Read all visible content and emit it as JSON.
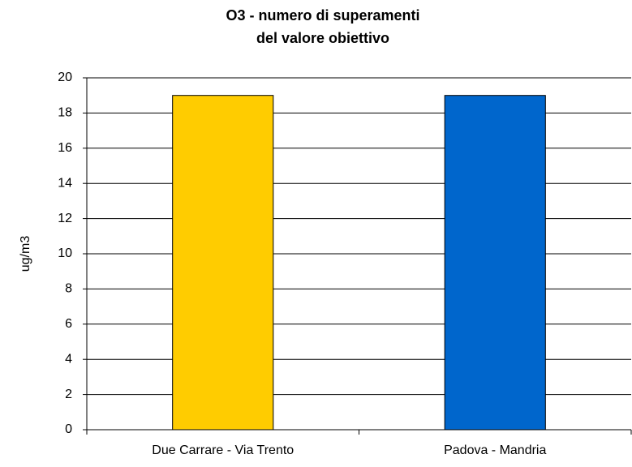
{
  "chart_data": {
    "type": "bar",
    "title": [
      "O3 -  numero di superamenti",
      "del valore obiettivo"
    ],
    "ylabel": "ug/m3",
    "categories": [
      "Due Carrare - Via Trento",
      "Padova - Mandria"
    ],
    "values": [
      19,
      19
    ],
    "colors": [
      "#ffcc00",
      "#0066cc"
    ],
    "ylim": [
      0,
      20
    ],
    "yticks": [
      0,
      2,
      4,
      6,
      8,
      10,
      12,
      14,
      16,
      18,
      20
    ],
    "grid": true
  }
}
